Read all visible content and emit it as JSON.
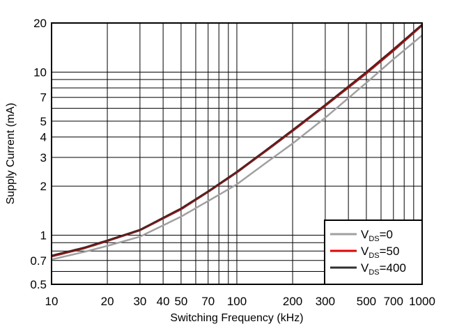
{
  "chart_data": {
    "type": "line",
    "title": "",
    "xlabel": "Switching Frequency (kHz)",
    "ylabel": "Supply Current (mA)",
    "xscale": "log",
    "yscale": "log",
    "xlim": [
      10,
      1000
    ],
    "ylim": [
      0.5,
      20
    ],
    "x_ticks": [
      10,
      20,
      30,
      40,
      50,
      70,
      100,
      200,
      300,
      500,
      700,
      1000
    ],
    "x_tick_labels": [
      "10",
      "20",
      "30",
      "40",
      "50",
      "70",
      "100",
      "200",
      "300",
      "500",
      "700",
      "1000"
    ],
    "y_ticks": [
      0.5,
      0.7,
      1,
      2,
      3,
      4,
      5,
      7,
      10,
      20
    ],
    "y_tick_labels": [
      "0.5",
      "0.7",
      "1",
      "2",
      "3",
      "4",
      "5",
      "7",
      "10",
      "20"
    ],
    "x_grid": [
      10,
      20,
      30,
      40,
      50,
      60,
      70,
      80,
      90,
      100,
      200,
      300,
      400,
      500,
      600,
      700,
      800,
      900,
      1000
    ],
    "y_grid": [
      0.5,
      0.6,
      0.7,
      0.8,
      0.9,
      1,
      2,
      3,
      4,
      5,
      6,
      7,
      8,
      9,
      10,
      20
    ],
    "grid": true,
    "legend": "bottom-right",
    "series": [
      {
        "name": "VDS=0",
        "label_main": "V",
        "label_sub": "DS",
        "label_rest": "=0",
        "color": "#a0a0a0",
        "x": [
          10,
          15,
          20,
          30,
          50,
          70,
          100,
          150,
          200,
          300,
          500,
          700,
          1000
        ],
        "values": [
          0.71,
          0.79,
          0.86,
          0.98,
          1.3,
          1.62,
          2.05,
          2.88,
          3.65,
          5.25,
          8.6,
          12.0,
          16.8
        ]
      },
      {
        "name": "VDS=50",
        "label_main": "V",
        "label_sub": "DS",
        "label_rest": "=50",
        "color": "#e60000",
        "x": [
          10,
          15,
          20,
          30,
          50,
          70,
          100,
          150,
          200,
          300,
          500,
          700,
          1000
        ],
        "values": [
          0.74,
          0.83,
          0.92,
          1.07,
          1.44,
          1.84,
          2.42,
          3.4,
          4.35,
          6.2,
          9.8,
          13.5,
          19.3
        ]
      },
      {
        "name": "VDS=400",
        "label_main": "V",
        "label_sub": "DS",
        "label_rest": "=400",
        "color": "#303030",
        "x": [
          10,
          15,
          20,
          30,
          50,
          70,
          100,
          150,
          200,
          300,
          500,
          700,
          1000
        ],
        "values": [
          0.75,
          0.84,
          0.93,
          1.08,
          1.46,
          1.86,
          2.45,
          3.45,
          4.42,
          6.3,
          10.0,
          13.8,
          19.6
        ]
      }
    ]
  }
}
